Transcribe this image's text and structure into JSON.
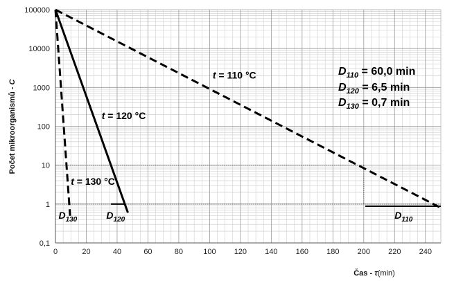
{
  "chart_data": {
    "type": "line",
    "y_scale": "log",
    "xlabel": "Čas - τ(min)",
    "xlabel_parts": {
      "main": "Čas - ",
      "sym": "τ",
      "unit": "(min)"
    },
    "ylabel": "Počet mikroorganismů - C",
    "ylabel_parts": {
      "main": "Počet mikroorganismů - ",
      "sym": "C"
    },
    "xlim": [
      0,
      250
    ],
    "ylim": [
      0.1,
      100000
    ],
    "x_ticks": [
      "0",
      "20",
      "40",
      "60",
      "80",
      "100",
      "120",
      "140",
      "160",
      "180",
      "200",
      "220",
      "240"
    ],
    "y_ticks": [
      "0,1",
      "1",
      "10",
      "100",
      "1000",
      "10000",
      "100000"
    ],
    "grid": true,
    "series": [
      {
        "name": "t = 110 °C",
        "style": "dashed",
        "color": "#000000",
        "x": [
          0,
          250
        ],
        "y": [
          100000,
          0.8
        ]
      },
      {
        "name": "t = 120 °C",
        "style": "solid",
        "color": "#000000",
        "x": [
          0,
          47
        ],
        "y": [
          100000,
          0.6
        ]
      },
      {
        "name": "t = 130 °C",
        "style": "dashed",
        "color": "#000000",
        "x": [
          0,
          9.5
        ],
        "y": [
          100000,
          0.5
        ]
      }
    ],
    "series_labels": [
      {
        "text": "t = 110 °C",
        "italic": "t",
        "rest": " = 110 °C",
        "x": 102,
        "y": 1700
      },
      {
        "text": "t = 120 °C",
        "italic": "t",
        "rest": " = 120 °C",
        "x": 30,
        "y": 155
      },
      {
        "text": "t = 130 °C",
        "italic": "t",
        "rest": " = 130 °C",
        "x": 10,
        "y": 3.1
      }
    ],
    "d_labels": [
      {
        "base": "D",
        "sub": "130",
        "x": 2,
        "y": 0.42
      },
      {
        "base": "D",
        "sub": "120",
        "x": 33,
        "y": 0.42
      },
      {
        "base": "D",
        "sub": "110",
        "x": 220,
        "y": 0.42
      }
    ],
    "d_values": [
      {
        "base": "D",
        "sub": "110",
        "value": " = 60,0 min"
      },
      {
        "base": "D",
        "sub": "120",
        "value": " = 6,5 min"
      },
      {
        "base": "D",
        "sub": "130",
        "value": " = 0,7 min"
      }
    ],
    "reference_lines": [
      {
        "kind": "horizontal",
        "y": 10,
        "x_from": 0,
        "x_to": 200,
        "style": "dotted"
      },
      {
        "kind": "horizontal",
        "y": 1,
        "x_from": 0,
        "x_to": 250,
        "style": "dotted"
      },
      {
        "kind": "vertical",
        "x": 200,
        "y_from": 10,
        "y_to": 1,
        "style": "dotted"
      }
    ],
    "d_segments": [
      {
        "x_from": 36,
        "x_to": 45,
        "y": 1
      },
      {
        "x_from": 201,
        "x_to": 250,
        "y": 0.88
      }
    ]
  }
}
